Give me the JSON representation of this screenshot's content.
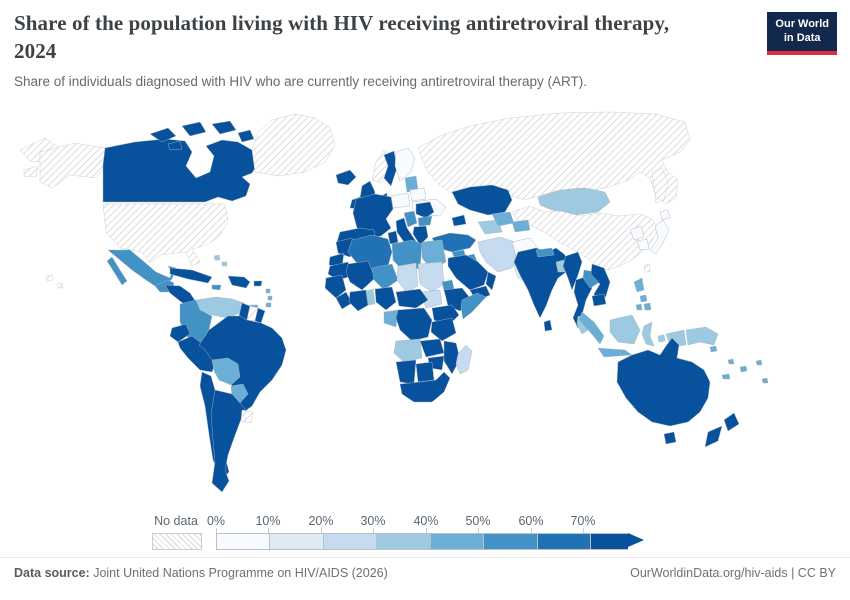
{
  "header": {
    "title": "Share of the population living with HIV receiving antiretroviral therapy, 2024",
    "subtitle": "Share of individuals diagnosed with HIV who are currently receiving antiretroviral therapy (ART).",
    "logo": {
      "line1": "Our World",
      "line2": "in Data",
      "bg": "#12284c",
      "accent": "#dc2c3e"
    }
  },
  "legend": {
    "no_data_label": "No data",
    "ticks": [
      "0%",
      "10%",
      "20%",
      "30%",
      "40%",
      "50%",
      "60%",
      "70%"
    ],
    "bucket_colors": [
      "#f7fbff",
      "#deebf7",
      "#c6dbef",
      "#9ecae1",
      "#6baed6",
      "#4292c6",
      "#2171b5",
      "#08519c"
    ],
    "hatch_color": "#d2d2d2"
  },
  "footer": {
    "source_label": "Data source:",
    "source_text": " Joint United Nations Programme on HIV/AIDS (2026)",
    "right_text": "OurWorldinData.org/hiv-aids | CC BY"
  },
  "chart_data": {
    "type": "choropleth (world map)",
    "title": "Share of the population living with HIV receiving antiretroviral therapy, 2024",
    "unit": "% of people diagnosed with HIV receiving ART",
    "legend_buckets": [
      "0-10%",
      "10-20%",
      "20-30%",
      "30-40%",
      "40-50%",
      "50-60%",
      "60-70%",
      "70%+",
      "No data"
    ],
    "regions": [
      {
        "name": "Canada",
        "bucket": "70%+"
      },
      {
        "name": "United States",
        "bucket": "No data"
      },
      {
        "name": "Greenland",
        "bucket": "No data"
      },
      {
        "name": "Mexico",
        "bucket": "50-60%"
      },
      {
        "name": "Guatemala / Honduras / Nicaragua",
        "bucket": "70%+"
      },
      {
        "name": "Panama / Costa Rica",
        "bucket": "50-60%"
      },
      {
        "name": "Cuba",
        "bucket": "70%+"
      },
      {
        "name": "Haiti / Dominican Republic",
        "bucket": "70%+"
      },
      {
        "name": "Colombia",
        "bucket": "50-60%"
      },
      {
        "name": "Venezuela",
        "bucket": "30-40%"
      },
      {
        "name": "Guyana",
        "bucket": "70%+"
      },
      {
        "name": "Suriname",
        "bucket": "No data"
      },
      {
        "name": "Brazil",
        "bucket": "70%+"
      },
      {
        "name": "Ecuador",
        "bucket": "70%+"
      },
      {
        "name": "Peru",
        "bucket": "70%+"
      },
      {
        "name": "Bolivia",
        "bucket": "40-50%"
      },
      {
        "name": "Paraguay",
        "bucket": "40-50%"
      },
      {
        "name": "Chile",
        "bucket": "70%+"
      },
      {
        "name": "Argentina",
        "bucket": "70%+"
      },
      {
        "name": "Uruguay",
        "bucket": "No data"
      },
      {
        "name": "Iceland / UK / Ireland / France / Spain / Germany / Italy / Sweden",
        "bucket": "70%+"
      },
      {
        "name": "Norway",
        "bucket": "No data"
      },
      {
        "name": "Finland / Poland / Belarus / Ukraine",
        "bucket": "0-10%"
      },
      {
        "name": "Baltic states",
        "bucket": "40-50%"
      },
      {
        "name": "Romania / Greece",
        "bucket": "70%+"
      },
      {
        "name": "Bulgaria / Western Balkans",
        "bucket": "50-60%"
      },
      {
        "name": "Russia",
        "bucket": "No data"
      },
      {
        "name": "Kazakhstan",
        "bucket": "70%+"
      },
      {
        "name": "Uzbekistan / Kyrgyzstan",
        "bucket": "40-50%"
      },
      {
        "name": "Turkmenistan",
        "bucket": "30-40%"
      },
      {
        "name": "Turkey",
        "bucket": "60-70%"
      },
      {
        "name": "Syria / Iraq",
        "bucket": "50-60%"
      },
      {
        "name": "Iran",
        "bucket": "20-30%"
      },
      {
        "name": "Afghanistan",
        "bucket": "0-10%"
      },
      {
        "name": "Pakistan",
        "bucket": "10-20%"
      },
      {
        "name": "Saudi Arabia / Yemen / Oman",
        "bucket": "70%+"
      },
      {
        "name": "India",
        "bucket": "70%+"
      },
      {
        "name": "Nepal",
        "bucket": "50-60%"
      },
      {
        "name": "Bangladesh",
        "bucket": "30-40%"
      },
      {
        "name": "Sri Lanka",
        "bucket": "70%+"
      },
      {
        "name": "China",
        "bucket": "No data"
      },
      {
        "name": "Mongolia",
        "bucket": "30-40%"
      },
      {
        "name": "North Korea / South Korea / Japan",
        "bucket": "0-10%"
      },
      {
        "name": "Myanmar / Thailand / Vietnam / Cambodia",
        "bucket": "70%+"
      },
      {
        "name": "Laos",
        "bucket": "50-60%"
      },
      {
        "name": "Philippines",
        "bucket": "40-50%"
      },
      {
        "name": "Malaysia / Indonesia (Borneo, islands)",
        "bucket": "30-40%"
      },
      {
        "name": "Indonesia (Sumatra, Java)",
        "bucket": "40-50%"
      },
      {
        "name": "Papua New Guinea",
        "bucket": "30-40%"
      },
      {
        "name": "Australia / New Zealand",
        "bucket": "70%+"
      },
      {
        "name": "Pacific islands",
        "bucket": "40-50%"
      },
      {
        "name": "Morocco / Tunisia / Mauritania / Mali",
        "bucket": "70%+"
      },
      {
        "name": "Algeria",
        "bucket": "60-70%"
      },
      {
        "name": "Libya / Niger",
        "bucket": "50-60%"
      },
      {
        "name": "Egypt",
        "bucket": "40-50%"
      },
      {
        "name": "Chad / Sudan / South Sudan",
        "bucket": "20-30%"
      },
      {
        "name": "Eritrea / Somalia",
        "bucket": "50-60%"
      },
      {
        "name": "Ethiopia / Kenya / Nigeria / DR Congo / most of Sub-Saharan Africa",
        "bucket": "70%+"
      },
      {
        "name": "Togo / Benin",
        "bucket": "30-40%"
      },
      {
        "name": "Gabon / Congo",
        "bucket": "40-50%"
      },
      {
        "name": "Angola",
        "bucket": "30-40%"
      },
      {
        "name": "Madagascar",
        "bucket": "20-30%"
      },
      {
        "name": "Zambia / Zimbabwe / Mozambique / Namibia / Botswana / South Africa",
        "bucket": "70%+"
      }
    ]
  }
}
